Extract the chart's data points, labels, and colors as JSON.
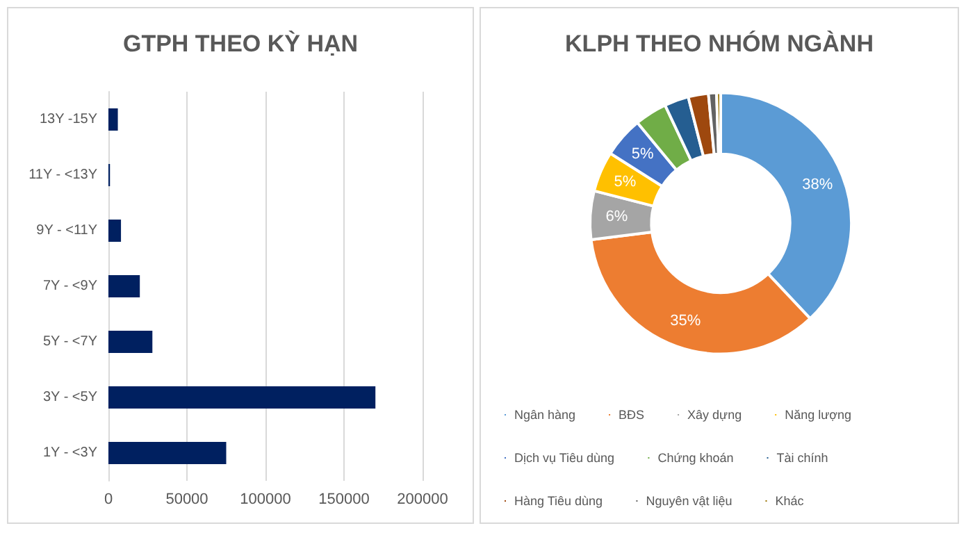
{
  "chart_data": [
    {
      "type": "bar",
      "title": "GTPH THEO KỲ HẠN",
      "orientation": "horizontal",
      "categories": [
        "13Y -15Y",
        "11Y - <13Y",
        "9Y - <11Y",
        "7Y - <9Y",
        "5Y - <7Y",
        "3Y - <5Y",
        "1Y - <3Y"
      ],
      "values": [
        6000,
        1000,
        8000,
        20000,
        28000,
        170000,
        75000
      ],
      "color": "#002060",
      "xlim": [
        0,
        200000
      ],
      "xticks": [
        0,
        50000,
        100000,
        150000,
        200000
      ],
      "grid": "x",
      "legend": false
    },
    {
      "type": "donut",
      "title": "KLPH THEO NHÓM NGÀNH",
      "categories": [
        "Ngân hàng",
        "BĐS",
        "Xây dựng",
        "Năng lượng",
        "Dịch vụ Tiêu dùng",
        "Chứng khoán",
        "Tài chính",
        "Hàng Tiêu dùng",
        "Nguyên vật liệu",
        "Khác"
      ],
      "values": [
        38,
        35,
        6,
        5,
        5,
        4,
        3,
        2.5,
        1,
        0.5
      ],
      "colors": [
        "#5b9bd5",
        "#ed7d31",
        "#a5a5a5",
        "#ffc000",
        "#4472c4",
        "#70ad47",
        "#255e91",
        "#9e480e",
        "#636363",
        "#997300"
      ],
      "value_labels": [
        "38%",
        "35%",
        "6%",
        "5%",
        "5%",
        null,
        null,
        null,
        null,
        null
      ],
      "legend": "bottom"
    }
  ]
}
